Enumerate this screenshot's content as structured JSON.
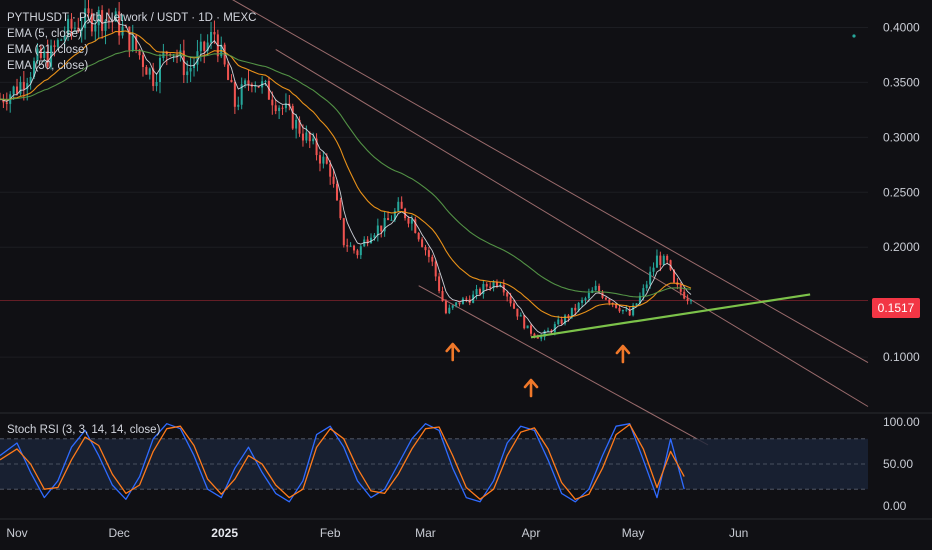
{
  "legend": {
    "symbol": "PYTHUSDT · Pyth Network / USDT · 1D · MEXC",
    "ema5": "EMA (5, close)",
    "ema21": "EMA (21, close)",
    "ema50": "EMA (50, close)"
  },
  "indicator": {
    "title": "Stoch RSI (3, 3, 14, 14, close)"
  },
  "current_price": "0.1517",
  "colors": {
    "background": "#101014",
    "up": "#26a69a",
    "down": "#ef5350",
    "ema_fast": "#e0e3eb",
    "ema_mid": "#ff9f1a",
    "ema_slow": "#5aa04a",
    "channel": "#c98a8a",
    "support": "#7cc24a",
    "arrow": "#f0782a",
    "stoch_k": "#2f6bff",
    "stoch_d": "#ff7a1a",
    "price_tag": "#f23645"
  },
  "chart_data": {
    "type": "candlestick",
    "title": "",
    "price_axis": {
      "ticks": [
        "0.4000",
        "0.3500",
        "0.3000",
        "0.2500",
        "0.2000",
        "0.1000"
      ],
      "tick_values": [
        0.4,
        0.35,
        0.3,
        0.25,
        0.2,
        0.1
      ],
      "range": [
        0.05,
        0.425
      ]
    },
    "time_axis": {
      "labels": [
        "Nov",
        "Dec",
        "2025",
        "Feb",
        "Mar",
        "Apr",
        "May",
        "Jun"
      ],
      "label_days": [
        0,
        30,
        61,
        92,
        120,
        151,
        181,
        212
      ],
      "range_days": [
        -5,
        250
      ]
    },
    "close_series": {
      "day": [
        -5,
        0,
        6,
        10,
        14,
        19,
        24,
        29,
        34,
        40,
        45,
        50,
        55,
        58,
        64,
        69,
        74,
        80,
        86,
        92,
        96,
        100,
        104,
        108,
        112,
        116,
        122,
        126,
        130,
        134,
        138,
        142,
        146,
        150,
        154,
        158,
        162,
        166,
        170,
        175,
        180,
        184,
        188,
        191,
        193,
        198
      ],
      "price": [
        0.335,
        0.345,
        0.37,
        0.375,
        0.395,
        0.405,
        0.41,
        0.405,
        0.385,
        0.355,
        0.385,
        0.36,
        0.38,
        0.395,
        0.33,
        0.355,
        0.34,
        0.32,
        0.295,
        0.27,
        0.205,
        0.195,
        0.215,
        0.22,
        0.235,
        0.225,
        0.185,
        0.14,
        0.15,
        0.155,
        0.165,
        0.17,
        0.145,
        0.125,
        0.118,
        0.128,
        0.138,
        0.15,
        0.162,
        0.15,
        0.138,
        0.16,
        0.19,
        0.185,
        0.165,
        0.1517
      ]
    },
    "channel_lines": [
      {
        "name": "upper",
        "points": [
          [
            55,
            0.44
          ],
          [
            250,
            0.095
          ]
        ]
      },
      {
        "name": "middle",
        "points": [
          [
            76,
            0.38
          ],
          [
            250,
            0.055
          ]
        ]
      },
      {
        "name": "lower",
        "points": [
          [
            118,
            0.165
          ],
          [
            203,
            0.02
          ]
        ]
      }
    ],
    "support_line": {
      "points": [
        [
          151,
          0.118
        ],
        [
          233,
          0.157
        ]
      ]
    },
    "arrows_days": [
      128,
      151,
      178
    ],
    "stoch_rsi": {
      "ticks": [
        "100.00",
        "50.00",
        "0.00"
      ],
      "tick_values": [
        100,
        50,
        0
      ],
      "band": [
        20,
        80
      ],
      "k": {
        "day": [
          -5,
          0,
          4,
          8,
          12,
          16,
          20,
          24,
          28,
          32,
          36,
          40,
          44,
          48,
          52,
          56,
          60,
          64,
          68,
          72,
          76,
          80,
          84,
          88,
          92,
          96,
          100,
          104,
          108,
          112,
          116,
          120,
          124,
          128,
          132,
          136,
          140,
          144,
          148,
          152,
          156,
          160,
          164,
          168,
          172,
          176,
          180,
          184,
          188,
          192,
          196
        ],
        "value": [
          60,
          75,
          40,
          10,
          30,
          70,
          90,
          60,
          25,
          8,
          35,
          80,
          98,
          92,
          60,
          20,
          10,
          45,
          70,
          40,
          15,
          5,
          30,
          85,
          95,
          70,
          30,
          10,
          20,
          50,
          80,
          98,
          90,
          45,
          10,
          5,
          30,
          75,
          95,
          90,
          55,
          15,
          5,
          20,
          60,
          95,
          98,
          55,
          10,
          80,
          20
        ]
      },
      "d": {
        "day": [
          -5,
          0,
          4,
          8,
          12,
          16,
          20,
          24,
          28,
          32,
          36,
          40,
          44,
          48,
          52,
          56,
          60,
          64,
          68,
          72,
          76,
          80,
          84,
          88,
          92,
          96,
          100,
          104,
          108,
          112,
          116,
          120,
          124,
          128,
          132,
          136,
          140,
          144,
          148,
          152,
          156,
          160,
          164,
          168,
          172,
          176,
          180,
          184,
          188,
          192,
          196
        ],
        "value": [
          55,
          68,
          50,
          20,
          22,
          55,
          82,
          72,
          38,
          15,
          25,
          65,
          92,
          95,
          72,
          32,
          14,
          32,
          60,
          50,
          25,
          10,
          20,
          70,
          92,
          80,
          45,
          18,
          15,
          38,
          68,
          92,
          94,
          60,
          22,
          8,
          20,
          60,
          88,
          93,
          68,
          28,
          8,
          14,
          45,
          85,
          97,
          68,
          22,
          65,
          35
        ]
      }
    }
  }
}
